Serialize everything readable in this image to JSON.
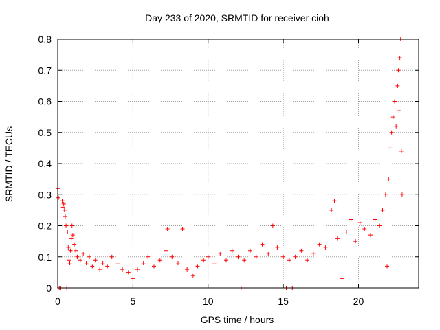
{
  "chart_data": {
    "type": "scatter",
    "title": "Day 233 of 2020, SRMTID for receiver cioh",
    "xlabel": "GPS time / hours",
    "ylabel": "SRMTID / TECUs",
    "xlim": [
      0,
      24
    ],
    "ylim": [
      0,
      0.8
    ],
    "xticks": [
      0,
      5,
      10,
      15,
      20
    ],
    "yticks": [
      0,
      0.1,
      0.2,
      0.3,
      0.4,
      0.5,
      0.6,
      0.7,
      0.8
    ],
    "xtick_labels": [
      "0",
      "5",
      "10",
      "15",
      "20"
    ],
    "ytick_labels": [
      "0",
      "0.1",
      "0.2",
      "0.3",
      "0.4",
      "0.5",
      "0.6",
      "0.7",
      "0.8"
    ],
    "grid": true,
    "marker": "+",
    "color": "#ff0000",
    "series": [
      {
        "name": "SRMTID",
        "points": [
          [
            0.0,
            0.32
          ],
          [
            0.05,
            0.29
          ],
          [
            0.1,
            0.0
          ],
          [
            0.2,
            0.0
          ],
          [
            0.3,
            0.28
          ],
          [
            0.35,
            0.26
          ],
          [
            0.4,
            0.27
          ],
          [
            0.45,
            0.25
          ],
          [
            0.5,
            0.23
          ],
          [
            0.55,
            0.2
          ],
          [
            0.6,
            0.0
          ],
          [
            0.65,
            0.18
          ],
          [
            0.7,
            0.13
          ],
          [
            0.75,
            0.09
          ],
          [
            0.8,
            0.08
          ],
          [
            0.85,
            0.12
          ],
          [
            0.9,
            0.16
          ],
          [
            0.95,
            0.2
          ],
          [
            1.0,
            0.17
          ],
          [
            1.1,
            0.14
          ],
          [
            1.2,
            0.12
          ],
          [
            1.3,
            0.1
          ],
          [
            1.5,
            0.09
          ],
          [
            1.7,
            0.11
          ],
          [
            1.9,
            0.08
          ],
          [
            2.1,
            0.1
          ],
          [
            2.3,
            0.07
          ],
          [
            2.5,
            0.09
          ],
          [
            2.8,
            0.06
          ],
          [
            3.0,
            0.08
          ],
          [
            3.3,
            0.07
          ],
          [
            3.6,
            0.1
          ],
          [
            4.0,
            0.08
          ],
          [
            4.3,
            0.06
          ],
          [
            4.7,
            0.05
          ],
          [
            5.0,
            0.03
          ],
          [
            5.3,
            0.06
          ],
          [
            5.7,
            0.08
          ],
          [
            6.0,
            0.1
          ],
          [
            6.4,
            0.07
          ],
          [
            6.8,
            0.09
          ],
          [
            7.2,
            0.12
          ],
          [
            7.3,
            0.19
          ],
          [
            7.6,
            0.1
          ],
          [
            8.0,
            0.08
          ],
          [
            8.3,
            0.19
          ],
          [
            8.6,
            0.06
          ],
          [
            9.0,
            0.04
          ],
          [
            9.3,
            0.07
          ],
          [
            9.7,
            0.09
          ],
          [
            10.0,
            0.1
          ],
          [
            10.4,
            0.08
          ],
          [
            10.8,
            0.11
          ],
          [
            11.2,
            0.09
          ],
          [
            11.6,
            0.12
          ],
          [
            12.0,
            0.1
          ],
          [
            12.2,
            0.0
          ],
          [
            12.4,
            0.09
          ],
          [
            12.8,
            0.12
          ],
          [
            13.2,
            0.1
          ],
          [
            13.6,
            0.14
          ],
          [
            14.0,
            0.11
          ],
          [
            14.3,
            0.2
          ],
          [
            14.6,
            0.13
          ],
          [
            15.0,
            0.1
          ],
          [
            15.2,
            0.0
          ],
          [
            15.4,
            0.09
          ],
          [
            15.6,
            0.0
          ],
          [
            15.8,
            0.1
          ],
          [
            16.2,
            0.12
          ],
          [
            16.6,
            0.09
          ],
          [
            17.0,
            0.11
          ],
          [
            17.4,
            0.14
          ],
          [
            17.8,
            0.13
          ],
          [
            18.2,
            0.25
          ],
          [
            18.4,
            0.28
          ],
          [
            18.6,
            0.16
          ],
          [
            18.9,
            0.03
          ],
          [
            19.2,
            0.18
          ],
          [
            19.5,
            0.22
          ],
          [
            19.8,
            0.15
          ],
          [
            20.1,
            0.21
          ],
          [
            20.4,
            0.19
          ],
          [
            20.8,
            0.17
          ],
          [
            21.1,
            0.22
          ],
          [
            21.4,
            0.2
          ],
          [
            21.6,
            0.25
          ],
          [
            21.8,
            0.3
          ],
          [
            21.9,
            0.07
          ],
          [
            22.0,
            0.35
          ],
          [
            22.1,
            0.45
          ],
          [
            22.2,
            0.5
          ],
          [
            22.3,
            0.55
          ],
          [
            22.4,
            0.6
          ],
          [
            22.5,
            0.52
          ],
          [
            22.6,
            0.65
          ],
          [
            22.65,
            0.7
          ],
          [
            22.7,
            0.57
          ],
          [
            22.75,
            0.74
          ],
          [
            22.8,
            0.8
          ],
          [
            22.85,
            0.44
          ],
          [
            22.9,
            0.3
          ]
        ]
      }
    ]
  }
}
